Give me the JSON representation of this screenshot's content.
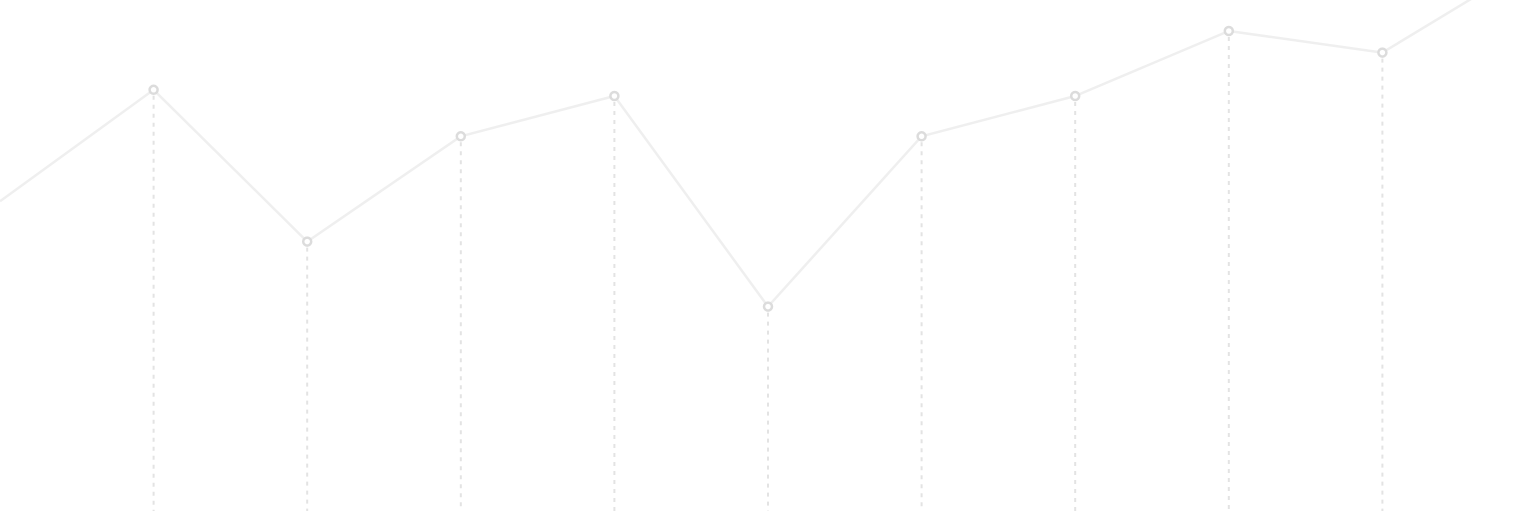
{
  "chart_data": {
    "type": "line",
    "x": [
      0,
      1,
      2,
      3,
      4,
      5,
      6,
      7,
      8,
      9,
      10
    ],
    "series": [
      {
        "values": [
          100,
          136,
          87,
          121,
          134,
          66,
          121,
          134,
          155,
          148,
          178
        ]
      }
    ],
    "xlim": [
      0,
      10
    ],
    "ylim": [
      0,
      165
    ],
    "title": "",
    "xlabel": "",
    "ylabel": "",
    "grid": false,
    "drop_lines": true,
    "marker_points_index_range": [
      1,
      9
    ]
  },
  "colors": {
    "line": "#efefef",
    "marker_stroke": "#dcdcdc",
    "marker_fill": "#ffffff",
    "drop_line": "#e3e3e3",
    "background": "#ffffff"
  }
}
